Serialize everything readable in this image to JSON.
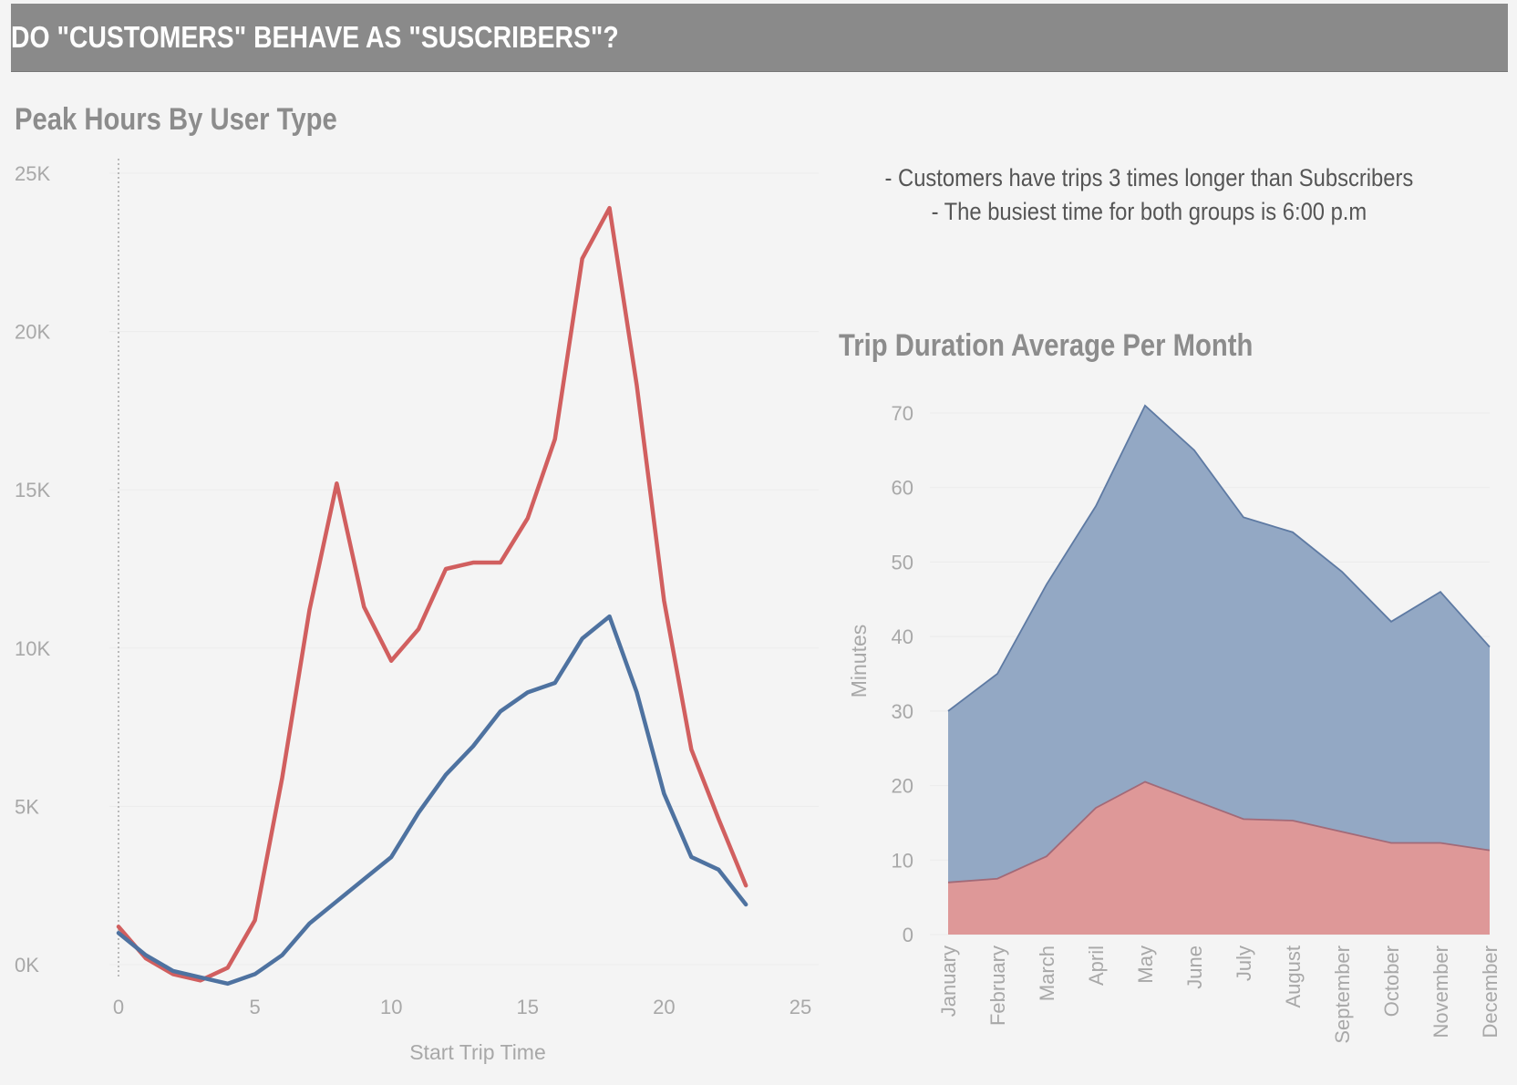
{
  "header": {
    "title": "DO \"CUSTOMERS\" BEHAVE AS \"SUSCRIBERS\"?"
  },
  "notes": [
    "- Customers have trips 3 times longer than Subscribers",
    "- The busiest time for both groups is 6:00 p.m"
  ],
  "colors": {
    "red": "#d15f5f",
    "blue": "#4e72a0",
    "area_blue": "#93a8c4",
    "area_red": "#de9898",
    "banner": "#8a8a8a"
  },
  "chart_data": [
    {
      "type": "line",
      "title": "Peak Hours By User Type",
      "xlabel": "Start Trip Time",
      "ylabel": "",
      "xlim": [
        0,
        25
      ],
      "ylim": [
        0,
        25000
      ],
      "x_ticks": [
        0,
        5,
        10,
        15,
        20,
        25
      ],
      "y_ticks": [
        0,
        5000,
        10000,
        15000,
        20000,
        25000
      ],
      "y_tick_labels": [
        "0K",
        "5K",
        "10K",
        "15K",
        "20K",
        "25K"
      ],
      "grid": true,
      "x": [
        0,
        1,
        2,
        3,
        4,
        5,
        6,
        7,
        8,
        9,
        10,
        11,
        12,
        13,
        14,
        15,
        16,
        17,
        18,
        19,
        20,
        21,
        22,
        23
      ],
      "series": [
        {
          "color": "#d15f5f",
          "values": [
            1200,
            200,
            -300,
            -500,
            -100,
            1400,
            5900,
            11200,
            15200,
            11300,
            9600,
            10600,
            12500,
            12700,
            12700,
            14100,
            16600,
            22300,
            23900,
            18300,
            11500,
            6800,
            4600,
            2500
          ]
        },
        {
          "color": "#4e72a0",
          "values": [
            1000,
            300,
            -200,
            -400,
            -600,
            -300,
            300,
            1300,
            2000,
            2700,
            3400,
            4800,
            6000,
            6900,
            8000,
            8600,
            8900,
            10300,
            11000,
            8600,
            5400,
            3400,
            3000,
            1900
          ]
        }
      ]
    },
    {
      "type": "area",
      "title": "Trip Duration Average Per Month",
      "xlabel": "",
      "ylabel": "Minutes",
      "ylim": [
        0,
        70
      ],
      "y_ticks": [
        0,
        10,
        20,
        30,
        40,
        50,
        60,
        70
      ],
      "grid": true,
      "stacked": true,
      "categories": [
        "January",
        "February",
        "March",
        "April",
        "May",
        "June",
        "July",
        "August",
        "September",
        "October",
        "November",
        "December"
      ],
      "series": [
        {
          "color": "#de9898",
          "values": [
            7,
            7.5,
            10.5,
            17,
            20.5,
            18,
            15.5,
            15.3,
            13.8,
            12.3,
            12.3,
            11.3
          ]
        },
        {
          "color": "#93a8c4",
          "values": [
            23,
            27.5,
            36.5,
            40.5,
            50.5,
            47,
            40.5,
            38.7,
            34.9,
            29.7,
            33.7,
            27.3
          ]
        }
      ]
    }
  ]
}
